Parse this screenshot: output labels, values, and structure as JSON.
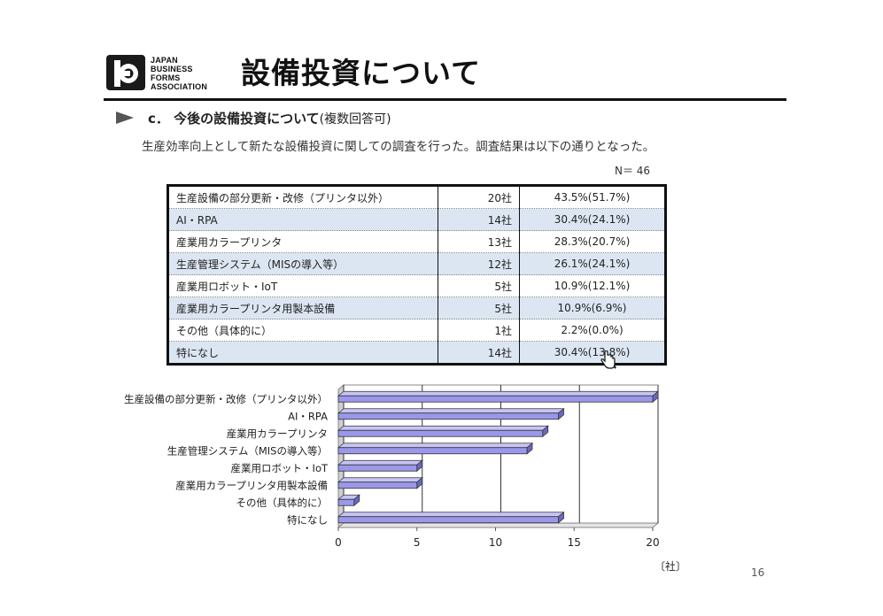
{
  "header": {
    "logo_lines": [
      "JAPAN",
      "BUSINESS",
      "FORMS",
      "ASSOCIATION"
    ],
    "title": "設備投資について"
  },
  "section": {
    "heading": "c．  今後の設備投資について",
    "heading_note": "(複数回答可)",
    "description": "生産効率向上として新たな設備投資に関しての調査を行った。調査結果は以下の通りとなった。",
    "n_label": "N＝  46"
  },
  "table": {
    "rows": [
      {
        "item": "生産設備の部分更新・改修（プリンタ以外）",
        "count": "20社",
        "pct": "43.5%(51.7%)"
      },
      {
        "item": "AI・RPA",
        "count": "14社",
        "pct": "30.4%(24.1%)"
      },
      {
        "item": "産業用カラープリンタ",
        "count": "13社",
        "pct": "28.3%(20.7%)"
      },
      {
        "item": "生産管理システム（MISの導入等）",
        "count": "12社",
        "pct": "26.1%(24.1%)"
      },
      {
        "item": "産業用ロボット・IoT",
        "count": "5社",
        "pct": "10.9%(12.1%)"
      },
      {
        "item": "産業用カラープリンタ用製本設備",
        "count": "5社",
        "pct": "10.9%(6.9%)"
      },
      {
        "item": "その他（具体的に）",
        "count": "1社",
        "pct": "2.2%(0.0%)"
      },
      {
        "item": "特になし",
        "count": "14社",
        "pct": "30.4%(13.8%)"
      }
    ]
  },
  "chart_data": {
    "type": "bar",
    "orientation": "horizontal",
    "categories": [
      "生産設備の部分更新・改修（プリンタ以外）",
      "AI・RPA",
      "産業用カラープリンタ",
      "生産管理システム（MISの導入等）",
      "産業用ロボット・IoT",
      "産業用カラープリンタ用製本設備",
      "その他（具体的に）",
      "特になし"
    ],
    "values": [
      20,
      14,
      13,
      12,
      5,
      5,
      1,
      14
    ],
    "xlim": [
      0,
      20
    ],
    "xticks": [
      0,
      5,
      10,
      15,
      20
    ],
    "unit_label": "〔社〕",
    "grid": true,
    "style": "3d",
    "bar_color": "#9b98ea"
  },
  "footer": {
    "page_number": "16"
  }
}
